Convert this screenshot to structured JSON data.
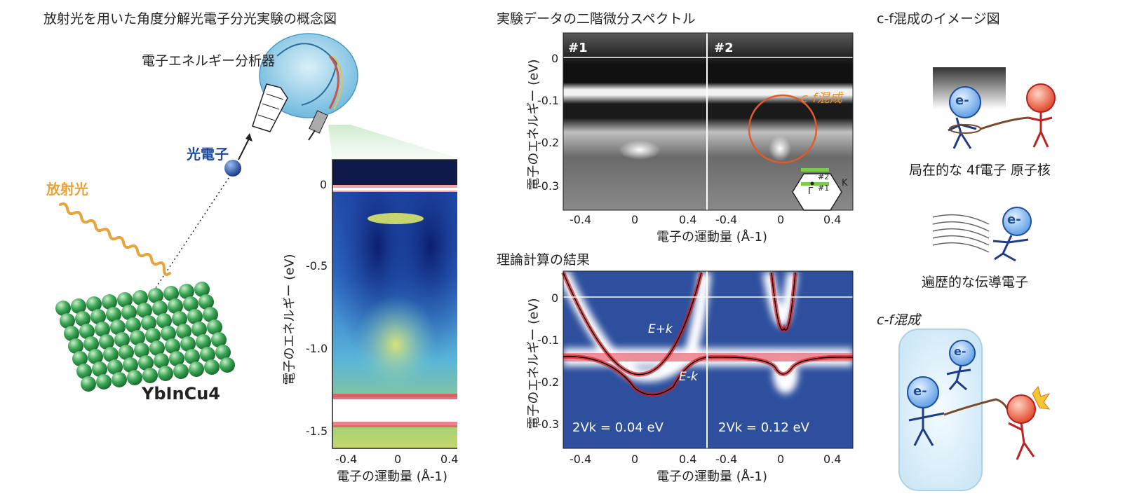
{
  "left": {
    "title": "放射光を用いた角度分解光電子分光実験の概念図",
    "analyzer_label": "電子エネルギー分析器",
    "photoelectron_label": "光電子",
    "radiation_label": "放射光",
    "sample_label": "YbInCu4",
    "colors": {
      "photoelectron": "#1f4ea0",
      "radiation": "#e8a43a",
      "atoms": "#3aa655"
    },
    "arpes_map": {
      "y_ticks": [
        "0",
        "-0.5",
        "-1.0",
        "-1.5"
      ],
      "x_ticks": [
        "-0.4",
        "0",
        "0.4"
      ],
      "ylabel": "電子のエネルギー (eV)",
      "xlabel": "電子の運動量 (Å-1)"
    }
  },
  "middle": {
    "exp_title": "実験データの二階微分スペクトル",
    "panel1_tag": "#1",
    "panel2_tag": "#2",
    "cf_label": "c-f混成",
    "exp_y_ticks": [
      "0",
      "-0.1",
      "-0.2",
      "-0.3"
    ],
    "x_ticks_left": [
      "-0.4",
      "0",
      "0.4"
    ],
    "x_ticks_right": [
      "-0.4",
      "0",
      "0.4"
    ],
    "ylabel": "電子のエネルギー (eV)",
    "xlabel": "電子の運動量 (Å-1)",
    "bz_labels": {
      "p2": "#2",
      "p1": "#1",
      "gamma": "Γ",
      "k": "K"
    },
    "theory_title": "理論計算の結果",
    "theory_y_ticks": [
      "0",
      "-0.1",
      "-0.2",
      "-0.3"
    ],
    "e_plus": "E+k",
    "e_minus": "E-k",
    "vk_left": "2Vk = 0.04 eV",
    "vk_right": "2Vk = 0.12 eV",
    "colors": {
      "circle": "#e35a2a",
      "cf_text": "#e8902a",
      "theory_bg": "#2d4f9e",
      "band": "#e01a1a"
    }
  },
  "right": {
    "title": "c-f混成のイメージ図",
    "caption1": "局在的な 4f電子  原子核",
    "caption2": "遍歴的な伝導電子",
    "cf_label": "c-f混成",
    "electron_symbol": "e-"
  }
}
